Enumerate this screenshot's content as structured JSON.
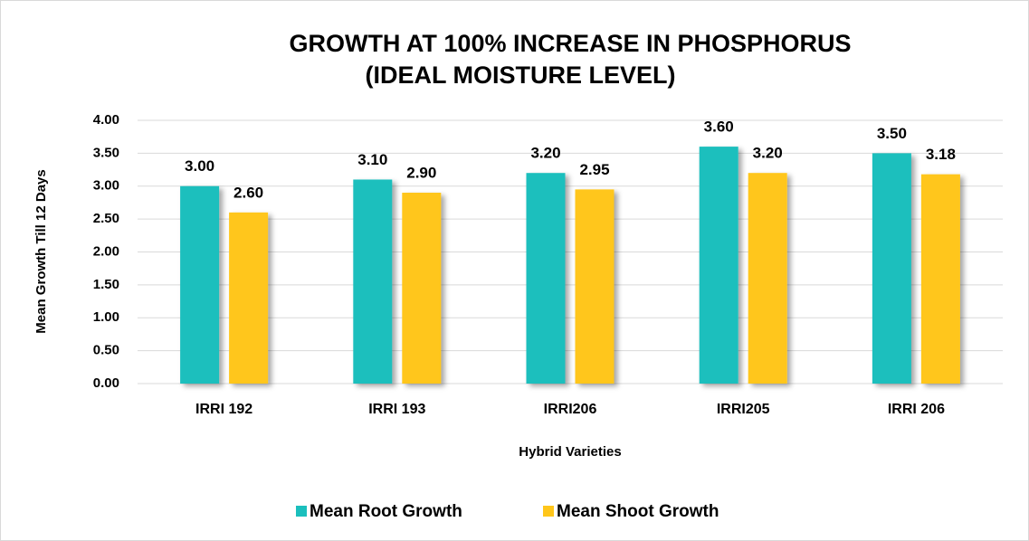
{
  "chart_data": {
    "type": "bar",
    "title": [
      "GROWTH AT 100% INCREASE IN PHOSPHORUS",
      "(IDEAL MOISTURE LEVEL)"
    ],
    "x_label": "Hybrid Varieties",
    "y_label": "Mean Growth Till 12 Days",
    "categories": [
      "IRRI 192",
      "IRRI 193",
      "IRRI206",
      "IRRI205",
      "IRRI 206"
    ],
    "series": [
      {
        "name": "Mean Root Growth",
        "color": "#1bbfbd",
        "values": [
          3.0,
          3.1,
          3.2,
          3.6,
          3.5
        ],
        "value_labels": [
          "3.00",
          "3.10",
          "3.20",
          "3.60",
          "3.50"
        ]
      },
      {
        "name": "Mean Shoot Growth",
        "color": "#ffc61a",
        "values": [
          2.6,
          2.9,
          2.95,
          3.2,
          3.18
        ],
        "value_labels": [
          "2.60",
          "2.90",
          "2.95",
          "3.20",
          "3.18"
        ]
      }
    ],
    "ylim": [
      0,
      4
    ],
    "yticks": [
      {
        "value": 0,
        "label": "0.00"
      },
      {
        "value": 0.5,
        "label": "0.50"
      },
      {
        "value": 1,
        "label": "1.00"
      },
      {
        "value": 1.5,
        "label": "1.50"
      },
      {
        "value": 2,
        "label": "2.00"
      },
      {
        "value": 2.5,
        "label": "2.50"
      },
      {
        "value": 3,
        "label": "3.00"
      },
      {
        "value": 3.5,
        "label": "3.50"
      },
      {
        "value": 4,
        "label": "4.00"
      }
    ],
    "grid": true,
    "legend": "bottom"
  }
}
